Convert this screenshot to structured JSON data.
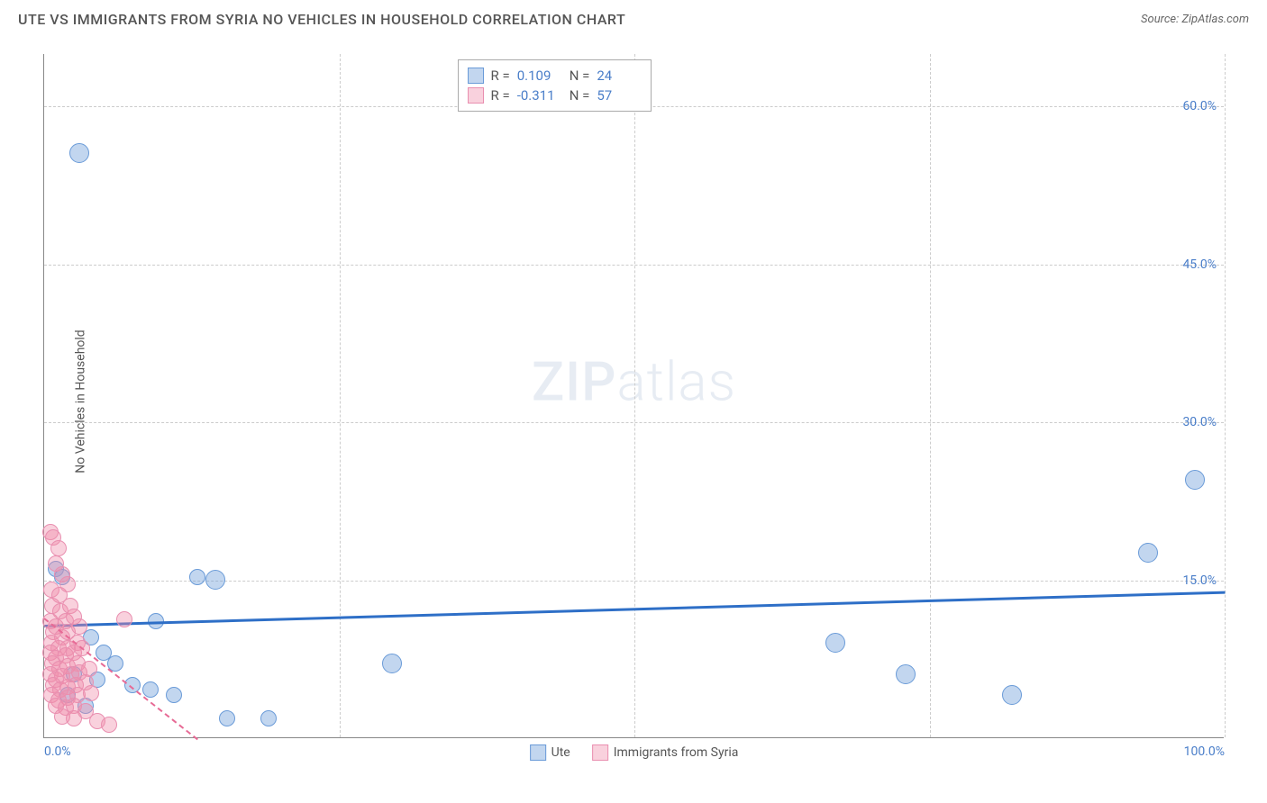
{
  "header": {
    "title": "UTE VS IMMIGRANTS FROM SYRIA NO VEHICLES IN HOUSEHOLD CORRELATION CHART",
    "source_prefix": "Source: ",
    "source": "ZipAtlas.com"
  },
  "chart": {
    "type": "scatter",
    "ylabel": "No Vehicles in Household",
    "watermark_bold": "ZIP",
    "watermark_thin": "atlas",
    "x_domain": [
      0,
      100
    ],
    "y_domain": [
      0,
      65
    ],
    "y_ticks": [
      {
        "val": 15,
        "label": "15.0%"
      },
      {
        "val": 30,
        "label": "30.0%"
      },
      {
        "val": 45,
        "label": "45.0%"
      },
      {
        "val": 60,
        "label": "60.0%"
      }
    ],
    "x_ticks": [
      {
        "val": 0,
        "label": "0.0%",
        "align": "left"
      },
      {
        "val": 100,
        "label": "100.0%",
        "align": "right"
      }
    ],
    "x_grid": [
      25,
      50,
      75,
      100
    ],
    "colors": {
      "blue_fill": "rgba(120,165,220,0.45)",
      "blue_stroke": "#6a9bd8",
      "pink_fill": "rgba(240,140,170,0.40)",
      "pink_stroke": "#e98fb0",
      "blue_line": "#2e6fc7",
      "pink_line": "#e76a95",
      "tick_text": "#4a7ec9",
      "grid": "#cccccc"
    },
    "marker_radius": 9,
    "marker_radius_large": 11,
    "series": [
      {
        "name": "Ute",
        "color_key": "blue",
        "trend": {
          "x1": 0,
          "y1": 10.8,
          "x2": 100,
          "y2": 14.0,
          "dashed": false,
          "width": 2.5
        },
        "points": [
          [
            1.0,
            16.0
          ],
          [
            1.5,
            15.2
          ],
          [
            3.0,
            55.5,
            "large"
          ],
          [
            13.0,
            15.2
          ],
          [
            14.5,
            15.0,
            "large"
          ],
          [
            5.0,
            8.0
          ],
          [
            6.0,
            7.0
          ],
          [
            7.5,
            5.0
          ],
          [
            9.0,
            4.5
          ],
          [
            9.5,
            11.0
          ],
          [
            11.0,
            4.0
          ],
          [
            15.5,
            1.8
          ],
          [
            19.0,
            1.8
          ],
          [
            29.5,
            7.0,
            "large"
          ],
          [
            67.0,
            9.0,
            "large"
          ],
          [
            73.0,
            6.0,
            "large"
          ],
          [
            82.0,
            4.0,
            "large"
          ],
          [
            93.5,
            17.5,
            "large"
          ],
          [
            97.5,
            24.5,
            "large"
          ],
          [
            2.0,
            4.0
          ],
          [
            2.5,
            6.0
          ],
          [
            3.5,
            3.0
          ],
          [
            4.0,
            9.5
          ],
          [
            4.5,
            5.5
          ]
        ]
      },
      {
        "name": "Immigrants from Syria",
        "color_key": "pink",
        "trend": {
          "x1": 0,
          "y1": 11.5,
          "x2": 13,
          "y2": 0,
          "dashed": true,
          "width": 2
        },
        "points": [
          [
            0.5,
            19.5
          ],
          [
            0.8,
            19.0
          ],
          [
            1.2,
            18.0
          ],
          [
            1.0,
            16.5
          ],
          [
            1.5,
            15.5
          ],
          [
            0.6,
            14.0
          ],
          [
            1.3,
            13.5
          ],
          [
            2.0,
            14.5
          ],
          [
            0.7,
            12.5
          ],
          [
            1.4,
            12.0
          ],
          [
            2.2,
            12.5
          ],
          [
            0.5,
            11.0
          ],
          [
            1.0,
            10.5
          ],
          [
            1.8,
            11.0
          ],
          [
            2.5,
            11.5
          ],
          [
            0.8,
            10.0
          ],
          [
            1.5,
            9.5
          ],
          [
            2.0,
            10.0
          ],
          [
            3.0,
            10.5
          ],
          [
            0.6,
            9.0
          ],
          [
            1.2,
            8.5
          ],
          [
            2.0,
            8.5
          ],
          [
            2.8,
            9.0
          ],
          [
            0.5,
            8.0
          ],
          [
            1.0,
            7.5
          ],
          [
            1.8,
            7.8
          ],
          [
            2.5,
            8.0
          ],
          [
            3.2,
            8.5
          ],
          [
            0.7,
            7.0
          ],
          [
            1.3,
            6.5
          ],
          [
            2.0,
            6.8
          ],
          [
            2.8,
            7.0
          ],
          [
            0.5,
            6.0
          ],
          [
            1.0,
            5.5
          ],
          [
            1.5,
            5.8
          ],
          [
            2.3,
            6.0
          ],
          [
            3.0,
            6.2
          ],
          [
            3.8,
            6.5
          ],
          [
            0.8,
            5.0
          ],
          [
            1.4,
            4.5
          ],
          [
            2.0,
            4.8
          ],
          [
            2.7,
            5.0
          ],
          [
            3.5,
            5.2
          ],
          [
            0.6,
            4.0
          ],
          [
            1.2,
            3.5
          ],
          [
            2.0,
            3.8
          ],
          [
            2.8,
            4.0
          ],
          [
            4.0,
            4.2
          ],
          [
            1.0,
            3.0
          ],
          [
            1.8,
            2.8
          ],
          [
            2.5,
            3.0
          ],
          [
            3.5,
            2.5
          ],
          [
            1.5,
            2.0
          ],
          [
            2.5,
            1.8
          ],
          [
            4.5,
            1.5
          ],
          [
            5.5,
            1.2
          ],
          [
            6.8,
            11.2
          ]
        ]
      }
    ],
    "stats_box": {
      "rows": [
        {
          "swatch": "blue",
          "r_label": "R =",
          "r": "0.109",
          "n_label": "N =",
          "n": "24"
        },
        {
          "swatch": "pink",
          "r_label": "R =",
          "r": "-0.311",
          "n_label": "N =",
          "n": "57"
        }
      ]
    },
    "bottom_legend": [
      {
        "swatch": "blue",
        "label": "Ute"
      },
      {
        "swatch": "pink",
        "label": "Immigrants from Syria"
      }
    ]
  }
}
